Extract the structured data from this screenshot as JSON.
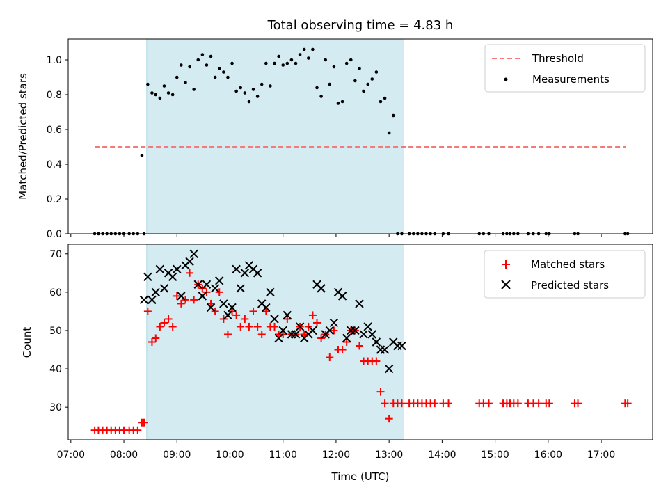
{
  "chart_data": [
    {
      "type": "scatter",
      "title": "Total observing time = 4.83 h",
      "ylabel": "Matched/Predicted stars",
      "ylim": [
        0,
        1.12
      ],
      "yticks": [
        "0.0",
        "0.2",
        "0.4",
        "0.6",
        "0.8",
        "1.0"
      ],
      "xlim": [
        6.95,
        17.97
      ],
      "grid": false,
      "legend_position": "top-right",
      "observing_window": [
        8.43,
        13.28
      ],
      "observing_window_color": "#d3ebf1",
      "threshold": {
        "name": "Threshold",
        "value": 0.5,
        "x": [
          7.45,
          17.47
        ],
        "color": "#f47a7a"
      },
      "series": [
        {
          "name": "Measurements",
          "color": "#000000",
          "x": [
            7.45,
            7.52,
            7.6,
            7.68,
            7.76,
            7.84,
            7.92,
            8.0,
            8.1,
            8.18,
            8.26,
            8.34,
            8.38,
            8.45,
            8.53,
            8.6,
            8.68,
            8.76,
            8.84,
            8.92,
            9.0,
            9.08,
            9.16,
            9.24,
            9.32,
            9.4,
            9.48,
            9.56,
            9.64,
            9.72,
            9.8,
            9.88,
            9.96,
            10.04,
            10.12,
            10.2,
            10.28,
            10.36,
            10.44,
            10.52,
            10.6,
            10.68,
            10.76,
            10.84,
            10.92,
            11.0,
            11.08,
            11.16,
            11.24,
            11.32,
            11.4,
            11.48,
            11.56,
            11.64,
            11.72,
            11.8,
            11.88,
            11.96,
            12.04,
            12.12,
            12.2,
            12.28,
            12.36,
            12.44,
            12.52,
            12.6,
            12.68,
            12.76,
            12.84,
            12.92,
            13.0,
            13.08,
            13.16,
            13.24,
            13.38,
            13.46,
            13.54,
            13.62,
            13.7,
            13.78,
            13.86,
            14.02,
            14.12,
            14.7,
            14.78,
            14.88,
            15.15,
            15.22,
            15.28,
            15.35,
            15.43,
            15.62,
            15.72,
            15.82,
            15.96,
            16.02,
            16.5,
            16.56,
            17.45,
            17.5
          ],
          "y": [
            0,
            0,
            0,
            0,
            0,
            0,
            0,
            0,
            0,
            0,
            0,
            0.45,
            0,
            0.86,
            0.81,
            0.8,
            0.78,
            0.85,
            0.81,
            0.8,
            0.9,
            0.97,
            0.87,
            0.96,
            0.83,
            1.0,
            1.03,
            0.97,
            1.02,
            0.9,
            0.95,
            0.93,
            0.9,
            0.98,
            0.82,
            0.84,
            0.81,
            0.76,
            0.83,
            0.79,
            0.86,
            0.98,
            0.85,
            0.98,
            1.02,
            0.97,
            0.98,
            1.0,
            0.98,
            1.03,
            1.06,
            1.01,
            1.06,
            0.84,
            0.79,
            1.0,
            0.86,
            0.96,
            0.75,
            0.76,
            0.98,
            1.0,
            0.88,
            0.95,
            0.82,
            0.86,
            0.89,
            0.93,
            0.76,
            0.78,
            0.58,
            0.68,
            0,
            0,
            0,
            0,
            0,
            0,
            0,
            0,
            0,
            0,
            0,
            0,
            0,
            0,
            0,
            0,
            0,
            0,
            0,
            0,
            0,
            0,
            0,
            0,
            0,
            0,
            0,
            0
          ]
        }
      ]
    },
    {
      "type": "scatter",
      "xlabel": "Time (UTC)",
      "ylabel": "Count",
      "ylim": [
        21.5,
        72.5
      ],
      "yticks": [
        "30",
        "40",
        "50",
        "60",
        "70"
      ],
      "xlim": [
        6.95,
        17.97
      ],
      "xticks": [
        "07:00",
        "08:00",
        "09:00",
        "10:00",
        "11:00",
        "12:00",
        "13:00",
        "14:00",
        "15:00",
        "16:00",
        "17:00"
      ],
      "grid": false,
      "legend_position": "top-right",
      "observing_window": [
        8.43,
        13.28
      ],
      "series": [
        {
          "name": "Matched stars",
          "marker": "plus",
          "color": "#ff0000",
          "x": [
            7.45,
            7.52,
            7.6,
            7.68,
            7.76,
            7.84,
            7.92,
            8.0,
            8.1,
            8.18,
            8.26,
            8.34,
            8.38,
            8.45,
            8.53,
            8.6,
            8.68,
            8.76,
            8.84,
            8.92,
            9.0,
            9.08,
            9.16,
            9.24,
            9.32,
            9.4,
            9.48,
            9.56,
            9.64,
            9.72,
            9.8,
            9.88,
            9.96,
            10.04,
            10.12,
            10.2,
            10.28,
            10.36,
            10.44,
            10.52,
            10.6,
            10.68,
            10.76,
            10.84,
            10.92,
            11.0,
            11.08,
            11.16,
            11.24,
            11.32,
            11.4,
            11.48,
            11.56,
            11.64,
            11.72,
            11.8,
            11.88,
            11.96,
            12.04,
            12.12,
            12.2,
            12.28,
            12.36,
            12.44,
            12.52,
            12.6,
            12.68,
            12.76,
            12.84,
            12.92,
            13.0,
            13.08,
            13.16,
            13.24,
            13.38,
            13.46,
            13.54,
            13.62,
            13.7,
            13.78,
            13.86,
            14.02,
            14.12,
            14.7,
            14.78,
            14.88,
            15.15,
            15.22,
            15.28,
            15.35,
            15.43,
            15.62,
            15.72,
            15.82,
            15.96,
            16.02,
            16.5,
            16.56,
            17.45,
            17.5
          ],
          "y": [
            24,
            24,
            24,
            24,
            24,
            24,
            24,
            24,
            24,
            24,
            24,
            26,
            26,
            55,
            47,
            48,
            51,
            52,
            53,
            51,
            59,
            57,
            58,
            65,
            58,
            62,
            61,
            60,
            57,
            55,
            60,
            53,
            49,
            55,
            54,
            51,
            53,
            51,
            55,
            51,
            49,
            55,
            51,
            51,
            49,
            49,
            53,
            49,
            49,
            51,
            49,
            51,
            54,
            52,
            48,
            49,
            43,
            50,
            45,
            45,
            47,
            50,
            50,
            46,
            42,
            42,
            42,
            42,
            34,
            31,
            27,
            31,
            31,
            31,
            31,
            31,
            31,
            31,
            31,
            31,
            31,
            31,
            31,
            31,
            31,
            31,
            31,
            31,
            31,
            31,
            31,
            31,
            31,
            31,
            31,
            31,
            31,
            31,
            31,
            31
          ]
        },
        {
          "name": "Predicted stars",
          "marker": "x",
          "color": "#000000",
          "x": [
            8.38,
            8.45,
            8.53,
            8.6,
            8.68,
            8.76,
            8.84,
            8.92,
            9.0,
            9.08,
            9.16,
            9.24,
            9.32,
            9.4,
            9.48,
            9.56,
            9.64,
            9.72,
            9.8,
            9.88,
            9.96,
            10.04,
            10.12,
            10.2,
            10.28,
            10.36,
            10.44,
            10.52,
            10.6,
            10.68,
            10.76,
            10.84,
            10.92,
            11.0,
            11.08,
            11.16,
            11.24,
            11.32,
            11.4,
            11.48,
            11.56,
            11.64,
            11.72,
            11.8,
            11.88,
            11.96,
            12.04,
            12.12,
            12.2,
            12.28,
            12.36,
            12.44,
            12.52,
            12.6,
            12.68,
            12.76,
            12.84,
            12.92,
            13.0,
            13.08,
            13.16,
            13.24
          ],
          "y": [
            58,
            64,
            58,
            60,
            66,
            61,
            65,
            64,
            66,
            59,
            67,
            68,
            70,
            62,
            59,
            62,
            56,
            61,
            63,
            57,
            54,
            56,
            66,
            61,
            65,
            67,
            66,
            65,
            57,
            56,
            60,
            53,
            48,
            50,
            54,
            49,
            49,
            51,
            48,
            49,
            50,
            62,
            61,
            49,
            50,
            52,
            60,
            59,
            48,
            50,
            50,
            57,
            49,
            51,
            49,
            47,
            45,
            45,
            40,
            47,
            46,
            46
          ]
        }
      ]
    }
  ]
}
